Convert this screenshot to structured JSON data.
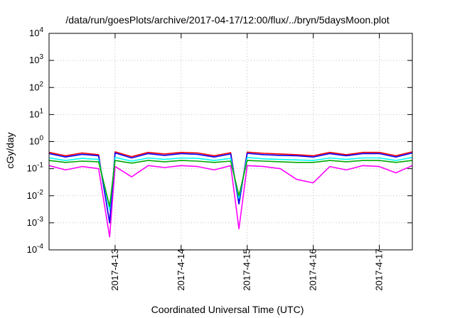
{
  "chart_data": {
    "type": "line",
    "title": "/data/run/goesPlots/archive/2017-04-17/12:00/flux/../bryn/5daysMoon.plot",
    "xlabel": "Coordinated Universal Time (UTC)",
    "ylabel": "cGy/day",
    "yscale": "log",
    "ylim": [
      0.0001,
      10000
    ],
    "y_ticks": [
      {
        "exp": "-4",
        "value": 0.0001
      },
      {
        "exp": "-3",
        "value": 0.001
      },
      {
        "exp": "-2",
        "value": 0.01
      },
      {
        "exp": "-1",
        "value": 0.1
      },
      {
        "exp": "0",
        "value": 1
      },
      {
        "exp": "1",
        "value": 10
      },
      {
        "exp": "2",
        "value": 100
      },
      {
        "exp": "3",
        "value": 1000
      },
      {
        "exp": "4",
        "value": 10000
      }
    ],
    "x_tick_labels": [
      "2017-4-13",
      "2017-4-14",
      "2017-4-15",
      "2017-4-16",
      "2017-4-17"
    ],
    "xlim": [
      "2017-04-12 00:00",
      "2017-04-17 12:00"
    ],
    "grid": true,
    "series": [
      {
        "color": "#ff00ff",
        "x": [
          "2017-04-12 00:00",
          "2017-04-12 06:00",
          "2017-04-12 12:00",
          "2017-04-12 18:00",
          "2017-04-12 22:00",
          "2017-04-13 00:00",
          "2017-04-13 06:00",
          "2017-04-13 12:00",
          "2017-04-13 18:00",
          "2017-04-14 00:00",
          "2017-04-14 06:00",
          "2017-04-14 12:00",
          "2017-04-14 18:00",
          "2017-04-14 21:00",
          "2017-04-15 00:00",
          "2017-04-15 06:00",
          "2017-04-15 12:00",
          "2017-04-15 18:00",
          "2017-04-16 00:00",
          "2017-04-16 06:00",
          "2017-04-16 12:00",
          "2017-04-16 18:00",
          "2017-04-17 00:00",
          "2017-04-17 06:00",
          "2017-04-17 12:00"
        ],
        "values": [
          0.13,
          0.09,
          0.12,
          0.1,
          0.0003,
          0.12,
          0.05,
          0.13,
          0.11,
          0.13,
          0.12,
          0.09,
          0.13,
          0.0006,
          0.13,
          0.12,
          0.1,
          0.04,
          0.03,
          0.12,
          0.09,
          0.13,
          0.12,
          0.07,
          0.13
        ]
      },
      {
        "color": "#ff0000",
        "x": [
          "2017-04-12 00:00",
          "2017-04-12 06:00",
          "2017-04-12 12:00",
          "2017-04-12 18:00",
          "2017-04-12 22:00",
          "2017-04-13 00:00",
          "2017-04-13 06:00",
          "2017-04-13 12:00",
          "2017-04-13 18:00",
          "2017-04-14 00:00",
          "2017-04-14 06:00",
          "2017-04-14 12:00",
          "2017-04-14 18:00",
          "2017-04-14 21:00",
          "2017-04-15 00:00",
          "2017-04-15 06:00",
          "2017-04-15 12:00",
          "2017-04-15 18:00",
          "2017-04-16 00:00",
          "2017-04-16 06:00",
          "2017-04-16 12:00",
          "2017-04-16 18:00",
          "2017-04-17 00:00",
          "2017-04-17 06:00",
          "2017-04-17 12:00"
        ],
        "values": [
          0.4,
          0.3,
          0.38,
          0.33,
          0.001,
          0.42,
          0.28,
          0.4,
          0.35,
          0.4,
          0.38,
          0.3,
          0.39,
          0.005,
          0.41,
          0.37,
          0.35,
          0.33,
          0.3,
          0.4,
          0.33,
          0.4,
          0.4,
          0.3,
          0.42
        ]
      },
      {
        "color": "#0000ff",
        "x": [
          "2017-04-12 00:00",
          "2017-04-12 06:00",
          "2017-04-12 12:00",
          "2017-04-12 18:00",
          "2017-04-12 22:00",
          "2017-04-13 00:00",
          "2017-04-13 06:00",
          "2017-04-13 12:00",
          "2017-04-13 18:00",
          "2017-04-14 00:00",
          "2017-04-14 06:00",
          "2017-04-14 12:00",
          "2017-04-14 18:00",
          "2017-04-14 21:00",
          "2017-04-15 00:00",
          "2017-04-15 06:00",
          "2017-04-15 12:00",
          "2017-04-15 18:00",
          "2017-04-16 00:00",
          "2017-04-16 06:00",
          "2017-04-16 12:00",
          "2017-04-16 18:00",
          "2017-04-17 00:00",
          "2017-04-17 06:00",
          "2017-04-17 12:00"
        ],
        "values": [
          0.36,
          0.27,
          0.34,
          0.3,
          0.001,
          0.38,
          0.25,
          0.36,
          0.31,
          0.36,
          0.34,
          0.27,
          0.35,
          0.005,
          0.37,
          0.33,
          0.31,
          0.3,
          0.27,
          0.36,
          0.3,
          0.36,
          0.36,
          0.27,
          0.38
        ]
      },
      {
        "color": "#00ffff",
        "x": [
          "2017-04-12 00:00",
          "2017-04-12 06:00",
          "2017-04-12 12:00",
          "2017-04-12 18:00",
          "2017-04-12 22:00",
          "2017-04-13 00:00",
          "2017-04-13 06:00",
          "2017-04-13 12:00",
          "2017-04-13 18:00",
          "2017-04-14 00:00",
          "2017-04-14 06:00",
          "2017-04-14 12:00",
          "2017-04-14 18:00",
          "2017-04-14 21:00",
          "2017-04-15 00:00",
          "2017-04-15 06:00",
          "2017-04-15 12:00",
          "2017-04-15 18:00",
          "2017-04-16 00:00",
          "2017-04-16 06:00",
          "2017-04-16 12:00",
          "2017-04-16 18:00",
          "2017-04-17 00:00",
          "2017-04-17 06:00",
          "2017-04-17 12:00"
        ],
        "values": [
          0.25,
          0.2,
          0.24,
          0.22,
          0.003,
          0.26,
          0.19,
          0.25,
          0.22,
          0.25,
          0.24,
          0.2,
          0.24,
          0.008,
          0.26,
          0.23,
          0.22,
          0.21,
          0.2,
          0.25,
          0.22,
          0.25,
          0.25,
          0.2,
          0.26
        ]
      },
      {
        "color": "#00aa00",
        "x": [
          "2017-04-12 00:00",
          "2017-04-12 06:00",
          "2017-04-12 12:00",
          "2017-04-12 18:00",
          "2017-04-12 22:00",
          "2017-04-13 00:00",
          "2017-04-13 06:00",
          "2017-04-13 12:00",
          "2017-04-13 18:00",
          "2017-04-14 00:00",
          "2017-04-14 06:00",
          "2017-04-14 12:00",
          "2017-04-14 18:00",
          "2017-04-14 21:00",
          "2017-04-15 00:00",
          "2017-04-15 06:00",
          "2017-04-15 12:00",
          "2017-04-15 18:00",
          "2017-04-16 00:00",
          "2017-04-16 06:00",
          "2017-04-16 12:00",
          "2017-04-16 18:00",
          "2017-04-17 00:00",
          "2017-04-17 06:00",
          "2017-04-17 12:00"
        ],
        "values": [
          0.2,
          0.17,
          0.19,
          0.18,
          0.004,
          0.2,
          0.16,
          0.2,
          0.18,
          0.2,
          0.19,
          0.17,
          0.19,
          0.01,
          0.2,
          0.19,
          0.18,
          0.17,
          0.17,
          0.2,
          0.18,
          0.2,
          0.2,
          0.17,
          0.2
        ]
      }
    ]
  }
}
